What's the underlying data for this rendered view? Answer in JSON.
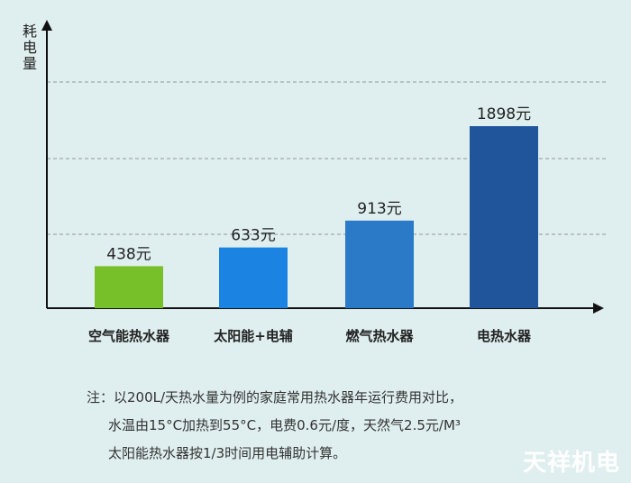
{
  "chart_data": {
    "type": "bar",
    "ylabel": "耗电量",
    "categories": [
      "空气能热水器",
      "太阳能+电辅",
      "燃气热水器",
      "电热水器"
    ],
    "values": [
      438,
      633,
      913,
      1898
    ],
    "value_labels": [
      "438元",
      "633元",
      "913元",
      "1898元"
    ],
    "colors": [
      "#77c02a",
      "#1b84e3",
      "#2a7ac8",
      "#20559c"
    ],
    "grid": "dashed horizontal"
  },
  "note": {
    "line1": "注：以200L/天热水量为例的家庭常用热水器年运行费用对比，",
    "line2": "水温由15°C加热到55°C，电费0.6元/度，天然气2.5元/M³",
    "line3": "太阳能热水器按1/3时间用电辅助计算。"
  },
  "watermark": "天祥机电"
}
